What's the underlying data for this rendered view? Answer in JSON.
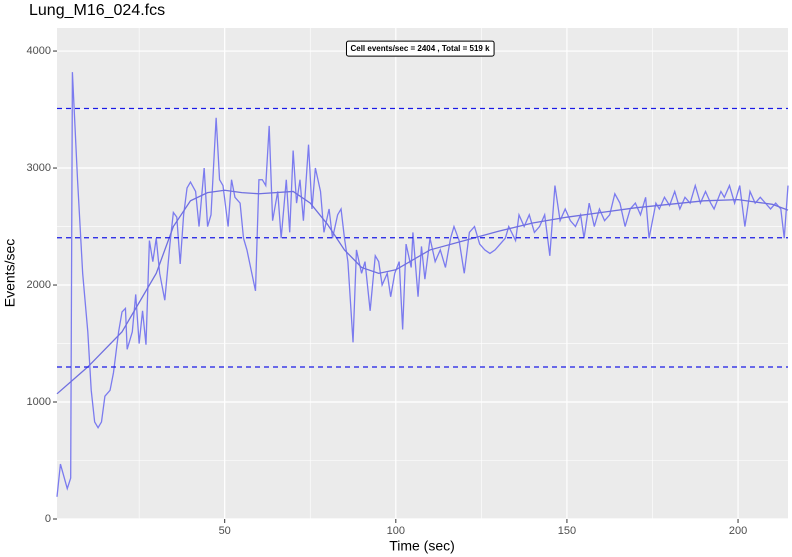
{
  "chart_data": {
    "type": "line",
    "title": "Lung_M16_024.fcs",
    "xlabel": "Time (sec)",
    "ylabel": "Events/sec",
    "annotation": "Cell events/sec = 2404 , Total =  519  k",
    "xlim": [
      1,
      214.6
    ],
    "ylim": [
      0,
      4197
    ],
    "xticks": [
      50,
      100,
      150,
      200
    ],
    "yticks": [
      0,
      1000,
      2000,
      3000,
      4000
    ],
    "xminorticks": [
      25,
      75,
      125,
      175
    ],
    "yminorticks": [
      500,
      1500,
      2500,
      3500
    ],
    "grid": true,
    "hlines": [
      3509,
      2404,
      1299
    ],
    "hline_color": "#1a1ae6",
    "series": [
      {
        "color": "#7b7bef",
        "x": [
          1,
          2,
          4,
          5,
          5.5,
          7,
          8.5,
          10,
          11,
          12,
          13,
          14,
          15,
          16.5,
          17.5,
          19,
          20,
          21,
          21.5,
          23,
          24,
          25,
          26,
          27,
          28,
          29,
          30,
          31,
          32.5,
          34,
          35,
          36,
          37,
          38,
          39,
          40,
          41.5,
          42.5,
          44,
          45,
          46,
          47.5,
          48.5,
          49.5,
          51,
          52,
          53,
          54.5,
          55.5,
          56.5,
          59,
          60,
          61,
          62,
          63,
          64,
          65.5,
          66.5,
          68,
          69,
          70,
          71,
          72,
          73,
          74.5,
          75.5,
          76.5,
          78,
          79,
          80.5,
          81.5,
          83,
          84,
          85,
          86,
          87.5,
          88.5,
          90,
          91,
          92.5,
          94,
          95,
          96,
          97.5,
          98.5,
          99.7,
          101,
          102,
          103,
          104.5,
          105,
          106.5,
          107.5,
          108.5,
          110,
          111.5,
          113,
          114.5,
          116,
          117,
          118.5,
          120,
          121.5,
          123,
          124.5,
          126,
          127.5,
          129,
          130.5,
          132,
          133,
          135,
          136,
          137.5,
          139,
          140.5,
          142,
          143.5,
          145,
          146.5,
          148,
          149.5,
          151,
          152.5,
          154,
          155,
          156.5,
          158,
          159.5,
          161,
          162.5,
          164,
          165.5,
          167,
          168.5,
          170,
          171.5,
          173,
          174,
          176,
          177,
          178.5,
          180,
          181.5,
          183,
          184.5,
          186,
          187.5,
          189,
          190.5,
          192,
          193,
          195,
          196,
          197.5,
          199,
          200.5,
          202,
          203.5,
          205,
          206.5,
          208,
          209.5,
          211,
          212.5,
          213.5,
          214.6
        ],
        "values": [
          190,
          470,
          260,
          350,
          3820,
          2900,
          2100,
          1600,
          1100,
          830,
          780,
          830,
          1050,
          1100,
          1250,
          1600,
          1770,
          1800,
          1450,
          1600,
          1920,
          1500,
          1780,
          1490,
          2380,
          2200,
          2400,
          2100,
          1870,
          2350,
          2620,
          2580,
          2180,
          2600,
          2830,
          2880,
          2800,
          2500,
          3000,
          2500,
          2600,
          3430,
          2900,
          2850,
          2500,
          2900,
          2750,
          2700,
          2400,
          2300,
          1950,
          2900,
          2900,
          2850,
          3360,
          2550,
          2800,
          2400,
          2900,
          2450,
          3150,
          2700,
          2900,
          2550,
          3200,
          2650,
          3000,
          2800,
          2450,
          2650,
          2400,
          2600,
          2650,
          2400,
          2200,
          1510,
          2300,
          2100,
          2200,
          1780,
          2250,
          2200,
          2000,
          2100,
          1900,
          2100,
          2200,
          1620,
          2350,
          2150,
          2450,
          1900,
          2330,
          2050,
          2400,
          2200,
          2300,
          2150,
          2400,
          2500,
          2380,
          2100,
          2450,
          2500,
          2350,
          2300,
          2270,
          2300,
          2350,
          2400,
          2500,
          2380,
          2600,
          2500,
          2600,
          2450,
          2500,
          2600,
          2250,
          2850,
          2550,
          2650,
          2550,
          2500,
          2600,
          2400,
          2700,
          2500,
          2650,
          2550,
          2600,
          2780,
          2700,
          2500,
          2650,
          2700,
          2600,
          2750,
          2400,
          2700,
          2650,
          2750,
          2680,
          2800,
          2650,
          2750,
          2700,
          2850,
          2700,
          2800,
          2700,
          2650,
          2800,
          2750,
          2850,
          2700,
          2850,
          2500,
          2800,
          2700,
          2750,
          2700,
          2650,
          2700,
          2650,
          2400,
          2850
        ]
      },
      {
        "color": "#6f6fe0",
        "x": [
          1,
          10,
          20,
          30,
          35,
          40,
          45,
          50,
          55,
          60,
          70,
          75,
          80,
          85,
          90,
          95,
          100,
          110,
          120,
          130,
          140,
          150,
          160,
          170,
          180,
          190,
          200,
          205,
          210,
          214.6
        ],
        "values": [
          1070,
          1300,
          1600,
          2100,
          2500,
          2720,
          2790,
          2810,
          2790,
          2780,
          2800,
          2700,
          2520,
          2300,
          2150,
          2100,
          2130,
          2300,
          2380,
          2460,
          2530,
          2580,
          2620,
          2660,
          2690,
          2720,
          2730,
          2710,
          2690,
          2640
        ]
      }
    ]
  }
}
